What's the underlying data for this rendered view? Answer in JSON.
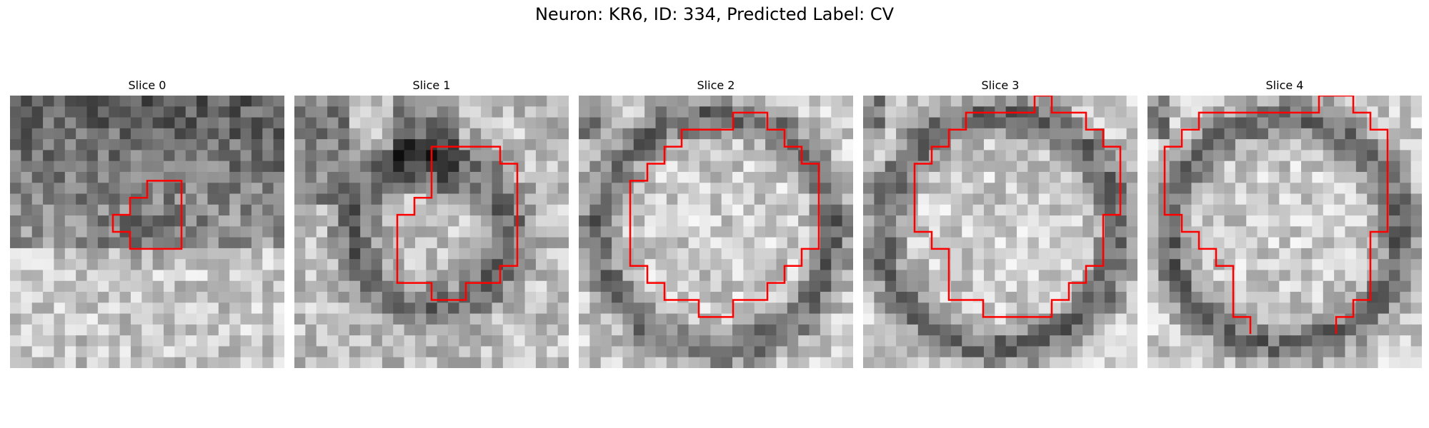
{
  "figure": {
    "title": "Neuron: KR6, ID: 334, Predicted Label: CV"
  },
  "colors": {
    "contour": "#ff0000",
    "background": "#ffffff"
  },
  "panels": [
    {
      "title": "Slice 0",
      "style": "dark-top",
      "contour": [
        [
          8,
          5
        ],
        [
          10,
          5
        ],
        [
          10,
          9
        ],
        [
          7,
          9
        ],
        [
          7,
          8
        ],
        [
          6,
          8
        ],
        [
          6,
          7
        ],
        [
          7,
          7
        ],
        [
          7,
          6
        ],
        [
          8,
          6
        ],
        [
          8,
          5
        ]
      ],
      "closed": true
    },
    {
      "title": "Slice 1",
      "style": "ring-small",
      "contour": [
        [
          8,
          3
        ],
        [
          12,
          3
        ],
        [
          12,
          4
        ],
        [
          13,
          4
        ],
        [
          13,
          10
        ],
        [
          12,
          10
        ],
        [
          12,
          11
        ],
        [
          10,
          11
        ],
        [
          10,
          12
        ],
        [
          8,
          12
        ],
        [
          8,
          11
        ],
        [
          6,
          11
        ],
        [
          6,
          9
        ],
        [
          6,
          8
        ],
        [
          6,
          7
        ],
        [
          7,
          7
        ],
        [
          7,
          6
        ],
        [
          8,
          6
        ],
        [
          8,
          3
        ]
      ],
      "closed": true
    },
    {
      "title": "Slice 2",
      "style": "ring-large",
      "contour": [
        [
          9,
          1
        ],
        [
          11,
          1
        ],
        [
          11,
          2
        ],
        [
          12,
          2
        ],
        [
          12,
          3
        ],
        [
          13,
          3
        ],
        [
          13,
          4
        ],
        [
          14,
          4
        ],
        [
          14,
          9
        ],
        [
          13,
          9
        ],
        [
          13,
          10
        ],
        [
          12,
          10
        ],
        [
          12,
          11
        ],
        [
          11,
          11
        ],
        [
          11,
          12
        ],
        [
          9,
          12
        ],
        [
          9,
          13
        ],
        [
          7,
          13
        ],
        [
          7,
          12
        ],
        [
          5,
          12
        ],
        [
          5,
          11
        ],
        [
          4,
          11
        ],
        [
          4,
          10
        ],
        [
          3,
          10
        ],
        [
          3,
          9
        ],
        [
          3,
          5
        ],
        [
          4,
          5
        ],
        [
          4,
          4
        ],
        [
          5,
          4
        ],
        [
          5,
          3
        ],
        [
          6,
          3
        ],
        [
          6,
          2
        ],
        [
          9,
          2
        ],
        [
          9,
          1
        ]
      ],
      "closed": true
    },
    {
      "title": "Slice 3",
      "style": "ring-large",
      "contour": [
        [
          10,
          0
        ],
        [
          11,
          0
        ],
        [
          11,
          1
        ],
        [
          13,
          1
        ],
        [
          13,
          2
        ],
        [
          14,
          2
        ],
        [
          14,
          3
        ],
        [
          15,
          3
        ],
        [
          15,
          7
        ],
        [
          14,
          7
        ],
        [
          14,
          10
        ],
        [
          13,
          10
        ],
        [
          13,
          11
        ],
        [
          12,
          11
        ],
        [
          12,
          12
        ],
        [
          11,
          12
        ],
        [
          11,
          13
        ],
        [
          7,
          13
        ],
        [
          7,
          12
        ],
        [
          5,
          12
        ],
        [
          5,
          9
        ],
        [
          4,
          9
        ],
        [
          4,
          8
        ],
        [
          3,
          8
        ],
        [
          3,
          4
        ],
        [
          4,
          4
        ],
        [
          4,
          3
        ],
        [
          5,
          3
        ],
        [
          5,
          2
        ],
        [
          6,
          2
        ],
        [
          6,
          1
        ],
        [
          10,
          1
        ],
        [
          10,
          0
        ]
      ],
      "closed": true
    },
    {
      "title": "Slice 4",
      "style": "ring-open",
      "contour": [
        [
          6,
          14
        ],
        [
          6,
          13
        ],
        [
          5,
          13
        ],
        [
          5,
          12
        ],
        [
          5,
          10
        ],
        [
          4,
          10
        ],
        [
          4,
          9
        ],
        [
          3,
          9
        ],
        [
          3,
          8
        ],
        [
          2,
          8
        ],
        [
          2,
          7
        ],
        [
          1,
          7
        ],
        [
          1,
          3
        ],
        [
          2,
          3
        ],
        [
          2,
          2
        ],
        [
          3,
          2
        ],
        [
          3,
          1
        ],
        [
          10,
          1
        ],
        [
          10,
          0
        ],
        [
          12,
          0
        ],
        [
          12,
          1
        ],
        [
          13,
          1
        ],
        [
          13,
          2
        ],
        [
          14,
          2
        ],
        [
          14,
          8
        ],
        [
          13,
          8
        ],
        [
          13,
          12
        ],
        [
          12,
          12
        ],
        [
          12,
          13
        ],
        [
          11,
          13
        ],
        [
          11,
          14
        ]
      ],
      "closed": false
    }
  ]
}
